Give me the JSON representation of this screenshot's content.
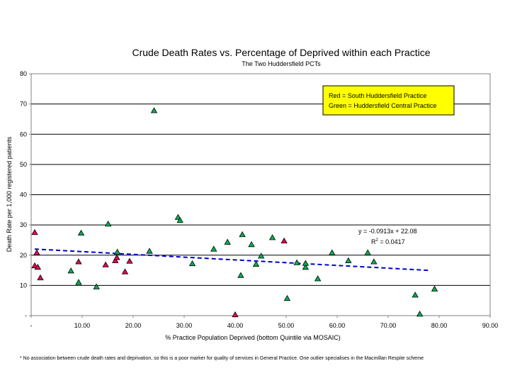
{
  "chart_data": {
    "type": "scatter",
    "title": "Crude Death Rates vs. Percentage of Deprived within each Practice",
    "subtitle": "The Two Huddersfield PCTs",
    "xlabel": "% Practice Population Deprived (bottom Quintile via MOSAIC)",
    "ylabel": "Death Rate per 1,000 registered patients",
    "xlim": [
      0,
      90
    ],
    "ylim": [
      0,
      80
    ],
    "x_ticks": [
      0,
      10,
      20,
      30,
      40,
      50,
      60,
      70,
      80,
      90
    ],
    "x_tick_labels": [
      "-",
      "10.00",
      "20.00",
      "30.00",
      "40.00",
      "50.00",
      "60.00",
      "70.00",
      "80.00",
      "90.00"
    ],
    "y_ticks": [
      0,
      10,
      20,
      30,
      40,
      50,
      60,
      70,
      80
    ],
    "y_tick_labels": [
      "-",
      "10",
      "20",
      "30",
      "40",
      "50",
      "60",
      "70",
      "80"
    ],
    "grid": "horizontal",
    "legend": {
      "placement": "top-right",
      "lines": [
        "Red = South Huddersfield Practice",
        "Green = Huddersfield Central Practice"
      ],
      "background": "#ffff00"
    },
    "series": [
      {
        "name": "South Huddersfield Practice",
        "color": "#e8004c",
        "marker": "triangle",
        "points": [
          [
            0.7,
            27.5
          ],
          [
            0.7,
            16.5
          ],
          [
            1.1,
            20.8
          ],
          [
            1.3,
            16.0
          ],
          [
            1.8,
            12.5
          ],
          [
            9.3,
            17.8
          ],
          [
            14.6,
            16.8
          ],
          [
            16.5,
            18.2
          ],
          [
            16.8,
            19.2
          ],
          [
            18.4,
            14.5
          ],
          [
            19.3,
            18.0
          ],
          [
            40.0,
            0.3
          ],
          [
            49.6,
            24.7
          ]
        ]
      },
      {
        "name": "Huddersfield Central Practice",
        "color": "#00b050",
        "marker": "triangle",
        "points": [
          [
            7.8,
            14.8
          ],
          [
            9.3,
            11.0
          ],
          [
            9.8,
            27.3
          ],
          [
            12.8,
            9.5
          ],
          [
            15.1,
            30.3
          ],
          [
            16.9,
            21.0
          ],
          [
            23.2,
            21.3
          ],
          [
            24.1,
            67.8
          ],
          [
            28.8,
            32.5
          ],
          [
            29.2,
            31.5
          ],
          [
            31.6,
            17.2
          ],
          [
            35.8,
            22.0
          ],
          [
            38.5,
            24.3
          ],
          [
            41.1,
            13.3
          ],
          [
            41.4,
            26.8
          ],
          [
            43.2,
            23.5
          ],
          [
            44.1,
            17.0
          ],
          [
            45.1,
            19.7
          ],
          [
            47.3,
            25.8
          ],
          [
            50.2,
            5.7
          ],
          [
            52.1,
            17.5
          ],
          [
            53.8,
            16.0
          ],
          [
            53.8,
            17.3
          ],
          [
            56.2,
            12.2
          ],
          [
            59.0,
            20.8
          ],
          [
            62.2,
            18.2
          ],
          [
            66.0,
            20.8
          ],
          [
            67.2,
            17.8
          ],
          [
            75.3,
            6.8
          ],
          [
            76.2,
            0.5
          ],
          [
            79.1,
            8.8
          ]
        ]
      }
    ],
    "trendline": {
      "slope": -0.0913,
      "intercept": 22.08,
      "x_range": [
        0.7,
        78.0
      ],
      "color": "#0000cc",
      "style": "dashed",
      "equation_label": "y = -0.0913x + 22.08",
      "r2_label_prefix": "R",
      "r2_label_value": " = 0.0417"
    },
    "footnote": "* No association between crude death rates and deprivation, so this is a poor marker for quality of services in General Practice. One outlier specialises in the Macmillan Respite scheme"
  }
}
